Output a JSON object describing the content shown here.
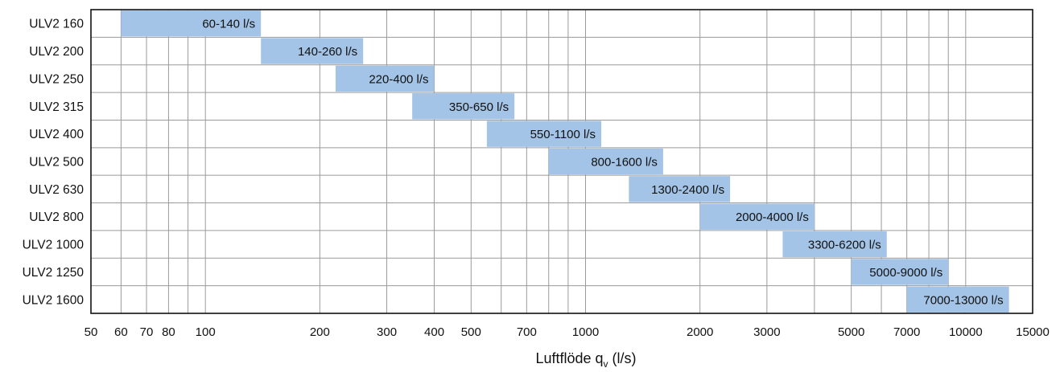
{
  "chart_data": {
    "type": "bar",
    "orientation": "horizontal-range",
    "xscale": "log",
    "xlim": [
      50,
      15000
    ],
    "xlabel_main": "Luftflöde q",
    "xlabel_sub": "v",
    "xlabel_unit": "(l/s)",
    "xticks": [
      50,
      60,
      70,
      80,
      100,
      200,
      300,
      400,
      500,
      700,
      1000,
      2000,
      3000,
      5000,
      7000,
      10000,
      15000
    ],
    "xtick_labels": [
      "50",
      "60",
      "70",
      "80",
      "100",
      "200",
      "300",
      "400",
      "500",
      "700",
      "1000",
      "2000",
      "3000",
      "5000",
      "7000",
      "10000",
      "15000"
    ],
    "grid": true,
    "bar_color": "#a3c4e6",
    "categories": [
      "ULV2 160",
      "ULV2 200",
      "ULV2 250",
      "ULV2 315",
      "ULV2 400",
      "ULV2 500",
      "ULV2 630",
      "ULV2 800",
      "ULV2 1000",
      "ULV2 1250",
      "ULV2 1600"
    ],
    "ranges": [
      {
        "min": 60,
        "max": 140,
        "label": "60-140 l/s"
      },
      {
        "min": 140,
        "max": 260,
        "label": "140-260 l/s"
      },
      {
        "min": 220,
        "max": 400,
        "label": "220-400 l/s"
      },
      {
        "min": 350,
        "max": 650,
        "label": "350-650 l/s"
      },
      {
        "min": 550,
        "max": 1100,
        "label": "550-1100 l/s"
      },
      {
        "min": 800,
        "max": 1600,
        "label": "800-1600 l/s"
      },
      {
        "min": 1300,
        "max": 2400,
        "label": "1300-2400 l/s"
      },
      {
        "min": 2000,
        "max": 4000,
        "label": "2000-4000 l/s"
      },
      {
        "min": 3300,
        "max": 6200,
        "label": "3300-6200 l/s"
      },
      {
        "min": 5000,
        "max": 9000,
        "label": "5000-9000 l/s"
      },
      {
        "min": 7000,
        "max": 13000,
        "label": "7000-13000 l/s"
      }
    ]
  }
}
